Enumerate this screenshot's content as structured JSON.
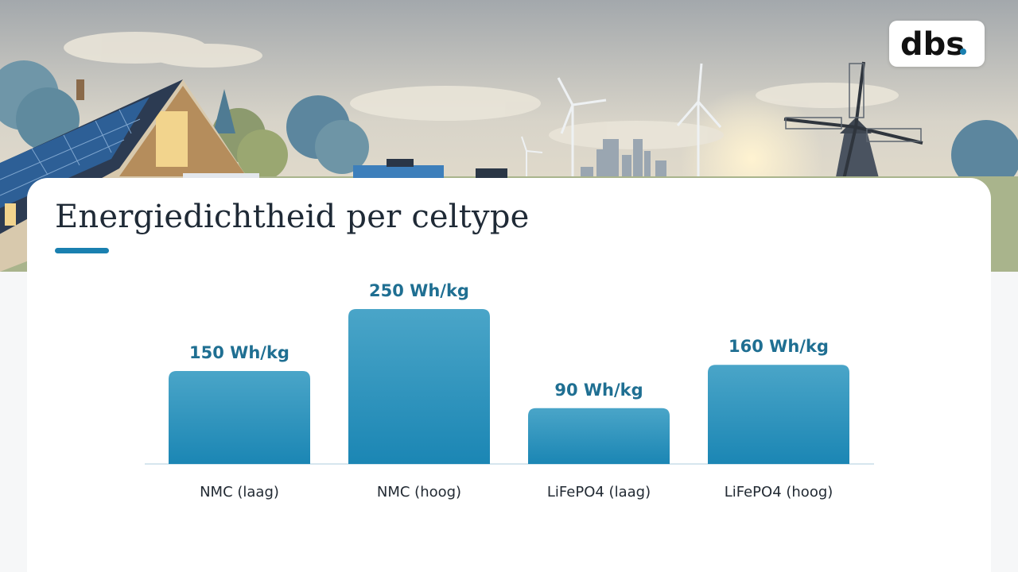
{
  "brand": {
    "logo_text": "dbs",
    "accent": "#1a80b0"
  },
  "slide": {
    "title": "Energiedichtheid per celtype"
  },
  "chart_data": {
    "type": "bar",
    "title": "Energiedichtheid per celtype",
    "xlabel": "",
    "ylabel": "",
    "unit": "Wh/kg",
    "categories": [
      "NMC (laag)",
      "NMC (hoog)",
      "LiFePO4 (laag)",
      "LiFePO4 (hoog)"
    ],
    "values": [
      150,
      250,
      90,
      160
    ],
    "data_labels": [
      "150 Wh/kg",
      "250 Wh/kg",
      "90 Wh/kg",
      "160 Wh/kg"
    ],
    "ylim": [
      0,
      250
    ],
    "grid": false,
    "bar_color_top": "#4aa5c8",
    "bar_color_bottom": "#1b86b4"
  }
}
